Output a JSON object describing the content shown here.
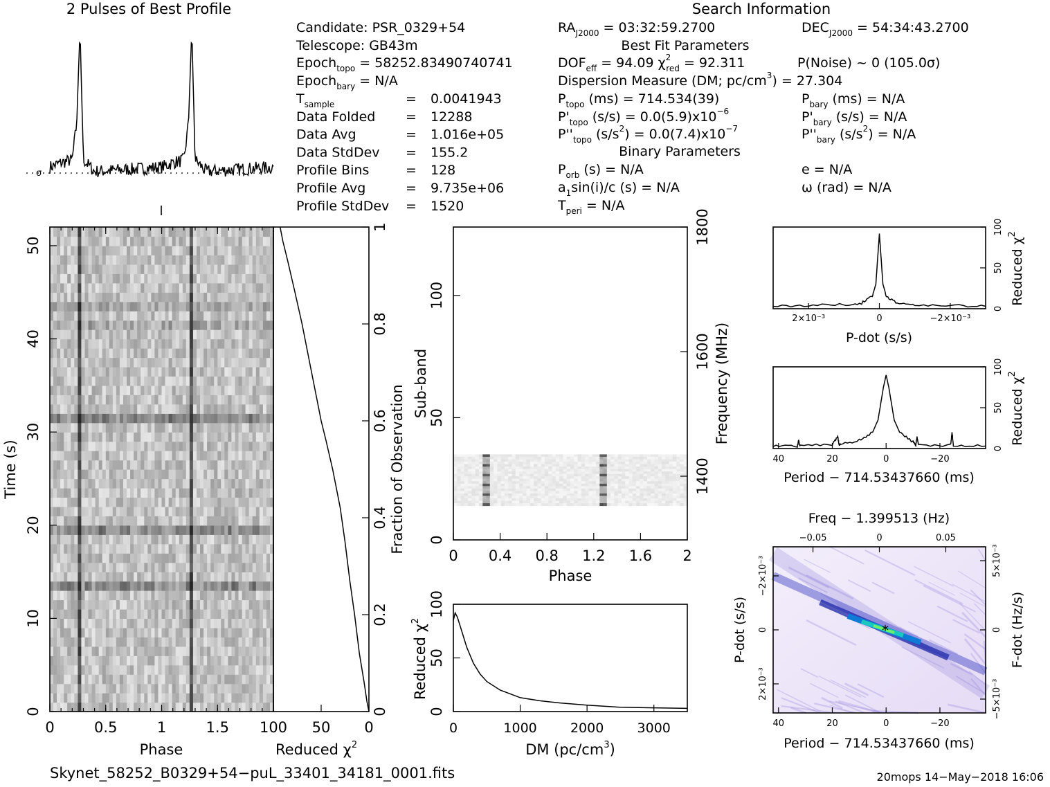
{
  "chart_data": [
    {
      "type": "line",
      "title": "2 Pulses of Best Profile",
      "x": [
        0.0,
        0.1,
        0.2,
        0.24,
        0.27,
        0.3,
        0.4,
        0.6,
        0.8,
        1.0,
        1.1,
        1.2,
        1.24,
        1.27,
        1.3,
        1.4,
        1.6,
        1.8,
        2.0
      ],
      "values": [
        0.05,
        0.08,
        0.1,
        0.35,
        1.0,
        0.1,
        0.02,
        0.03,
        0.04,
        0.05,
        0.08,
        0.1,
        0.35,
        1.0,
        0.1,
        0.02,
        0.03,
        0.04,
        0.05
      ],
      "baseline_marker": "σ"
    },
    {
      "type": "heatmap",
      "xlabel": "Phase",
      "ylabel": "Time (s)",
      "xlim": [
        0,
        2
      ],
      "ylim": [
        0,
        52
      ],
      "xticks": [
        "0",
        "0.5",
        "1",
        "1.5"
      ],
      "yticks": [
        "0",
        "10",
        "20",
        "30",
        "40",
        "50"
      ],
      "pulse_phases": [
        0.27,
        1.27
      ]
    },
    {
      "type": "line",
      "xlabel": "Reduced χ",
      "xlabel_sup": "2",
      "ylabel": "Fraction of Observation",
      "xlim": [
        100,
        0
      ],
      "ylim": [
        0,
        1
      ],
      "xticks": [
        "100",
        "50",
        "0"
      ],
      "yticks": [
        "0",
        "0.2",
        "0.4",
        "0.6",
        "0.8",
        "1"
      ],
      "x": [
        0,
        2,
        5,
        10,
        15,
        20,
        25,
        30,
        38,
        45,
        50,
        55,
        62,
        70,
        78,
        85,
        90,
        93
      ],
      "y": [
        0.0,
        0.02,
        0.06,
        0.12,
        0.2,
        0.27,
        0.35,
        0.42,
        0.5,
        0.56,
        0.6,
        0.65,
        0.72,
        0.8,
        0.87,
        0.93,
        0.97,
        1.0
      ]
    },
    {
      "type": "heatmap",
      "xlabel": "Phase",
      "ylabel": "Sub-band",
      "y2label": "Frequency (MHz)",
      "xlim": [
        0,
        2
      ],
      "ylim": [
        0,
        128
      ],
      "xticks": [
        "0",
        "0.4",
        "0.8",
        "1.2",
        "1.6",
        "2"
      ],
      "yticks": [
        "0",
        "50",
        "100"
      ],
      "y2ticks": [
        "1400",
        "1600",
        "1800"
      ],
      "band_subbands": [
        14,
        35
      ],
      "pulse_phases": [
        0.27,
        1.27
      ]
    },
    {
      "type": "line",
      "xlabel": "DM (pc/cm",
      "xlabel_sup": "3",
      "xlabel_end": ")",
      "ylabel": "Reduced χ",
      "ylabel_sup": "2",
      "xlim": [
        0,
        3500
      ],
      "ylim": [
        0,
        100
      ],
      "xticks": [
        "0",
        "1000",
        "2000",
        "3000"
      ],
      "yticks": [
        "0",
        "50",
        "100"
      ],
      "x": [
        0,
        27,
        60,
        100,
        150,
        200,
        300,
        400,
        500,
        700,
        1000,
        1300,
        1600,
        2000,
        2500,
        3000,
        3500
      ],
      "y": [
        85,
        92,
        88,
        80,
        70,
        60,
        45,
        35,
        28,
        20,
        13,
        10,
        8,
        6,
        4,
        3.5,
        3
      ]
    },
    {
      "type": "line",
      "xlabel": "P-dot (s/s)",
      "ylabel": "Reduced χ",
      "ylabel_sup": "2",
      "xlim": [
        0.003,
        -0.003
      ],
      "ylim": [
        0,
        100
      ],
      "xticks": [
        "2×10⁻³",
        "0",
        "−2×10⁻³"
      ],
      "yticks": [
        "0",
        "50",
        "100"
      ],
      "x": [
        0.003,
        0.002,
        0.001,
        0.0005,
        0.0002,
        0.0001,
        0,
        -0.0001,
        -0.0002,
        -0.0005,
        -0.001,
        -0.002,
        -0.003
      ],
      "y": [
        3,
        4,
        5,
        7,
        15,
        30,
        92,
        30,
        15,
        7,
        5,
        4,
        3
      ]
    },
    {
      "type": "line",
      "xlabel": "Period − 714.53437660 (ms)",
      "ylabel": "Reduced χ",
      "ylabel_sup": "2",
      "xlim": [
        42,
        -37
      ],
      "ylim": [
        0,
        100
      ],
      "xticks": [
        "40",
        "20",
        "0",
        "−20"
      ],
      "yticks": [
        "0",
        "50",
        "100"
      ],
      "x": [
        42,
        33,
        32.5,
        32,
        20,
        18,
        17.5,
        17,
        10,
        5,
        3,
        1,
        0,
        -1,
        -3,
        -5,
        -10,
        -11,
        -11.5,
        -12,
        -24,
        -24.5,
        -25,
        -37
      ],
      "y": [
        3,
        3,
        10,
        3,
        5,
        15,
        5,
        5,
        10,
        20,
        35,
        75,
        90,
        75,
        35,
        20,
        8,
        4,
        14,
        4,
        4,
        20,
        4,
        3
      ]
    },
    {
      "type": "heatmap",
      "xlabel": "Period − 714.53437660 (ms)",
      "x2label": "Freq − 1.399513 (Hz)",
      "ylabel": "P-dot (s/s)",
      "y2label": "F-dot (Hz/s)",
      "xlim": [
        42,
        -37
      ],
      "xticks": [
        "40",
        "20",
        "0",
        "−20"
      ],
      "x2ticks": [
        "−0.05",
        "0",
        "0.05"
      ],
      "yticks": [
        "−2×10⁻³",
        "0",
        "2×10⁻³"
      ],
      "y2ticks": [
        "5×10⁻³",
        "0",
        "−5×10⁻³"
      ],
      "best_fit_marker": "*"
    }
  ],
  "info": {
    "search_title": "Search Information",
    "candidate": "Candidate:  PSR_0329+54",
    "telescope": "Telescope:  GB43m",
    "epoch_topo_pre": "Epoch",
    "epoch_topo_sub": "topo",
    "epoch_topo_val": " = 58252.83490740741",
    "epoch_bary_pre": "Epoch",
    "epoch_bary_sub": "bary",
    "epoch_bary_val": " = N/A",
    "rows": [
      {
        "label": "T",
        "sub": "sample",
        "eq": "=",
        "value": "0.0041943"
      },
      {
        "label": "Data Folded",
        "sub": "",
        "eq": "=",
        "value": "12288"
      },
      {
        "label": "Data Avg",
        "sub": "",
        "eq": "=",
        "value": "1.016e+05"
      },
      {
        "label": "Data StdDev",
        "sub": "",
        "eq": "=",
        "value": "155.2"
      },
      {
        "label": "Profile Bins",
        "sub": "",
        "eq": "=",
        "value": "128"
      },
      {
        "label": "Profile Avg",
        "sub": "",
        "eq": "=",
        "value": "9.735e+06"
      },
      {
        "label": "Profile StdDev",
        "sub": "",
        "eq": "=",
        "value": "1520"
      }
    ],
    "ra_pre": "RA",
    "ra_sub": "J2000",
    "ra_val": " = 03:32:59.2700",
    "dec_pre": "DEC",
    "dec_sub": "J2000",
    "dec_val": " = 54:34:43.2700",
    "best_fit_title": "Best Fit Parameters",
    "dof_pre": "DOF",
    "dof_sub": "eff",
    "dof_val": " = 94.09  χ",
    "chi_sup": "2",
    "chi_sub": "red",
    "chi_val": " = 92.311",
    "pnoise": "P(Noise) ~ 0    (105.0σ)",
    "dm_pre": "Dispersion Measure (DM; pc/cm",
    "dm_sup": "3",
    "dm_val": ") = 27.304",
    "ptopo_pre": "P",
    "ptopo_sub": "topo",
    "ptopo_val": " (ms) =  714.534(39)",
    "pbary_pre": "P",
    "pbary_sub": "bary",
    "pbary_val": " (ms) = N/A",
    "pdtopo_pre": "P'",
    "pdtopo_sub": "topo",
    "pdtopo_val": " (s/s) = 0.0(5.9)x10",
    "pdtopo_sup": "−6",
    "pdbary_pre": "P'",
    "pdbary_sub": "bary",
    "pdbary_val": " (s/s) = N/A",
    "pddtopo_pre": "P''",
    "pddtopo_sub": "topo",
    "pddtopo_mid": " (s/s",
    "pddtopo_sup1": "2",
    "pddtopo_val": ") = 0.0(7.4)x10",
    "pddtopo_sup": "−7",
    "pddbary_pre": "P''",
    "pddbary_sub": "bary",
    "pddbary_mid": " (s/s",
    "pddbary_sup1": "2",
    "pddbary_val": ") = N/A",
    "binary_title": "Binary Parameters",
    "porb_pre": "P",
    "porb_sub": "orb",
    "porb_val": " (s) = N/A",
    "e_val": "e = N/A",
    "a1_pre": "a",
    "a1_sub": "1",
    "a1_val": "sin(i)/c (s) = N/A",
    "omega_val": "ω (rad) = N/A",
    "tperi_pre": "T",
    "tperi_sub": "peri",
    "tperi_val": " = N/A"
  },
  "footer": {
    "filename": "Skynet_58252_B0329+54−puL_33401_34181_0001.fits",
    "stamp": "20mops 14−May−2018 16:06"
  }
}
